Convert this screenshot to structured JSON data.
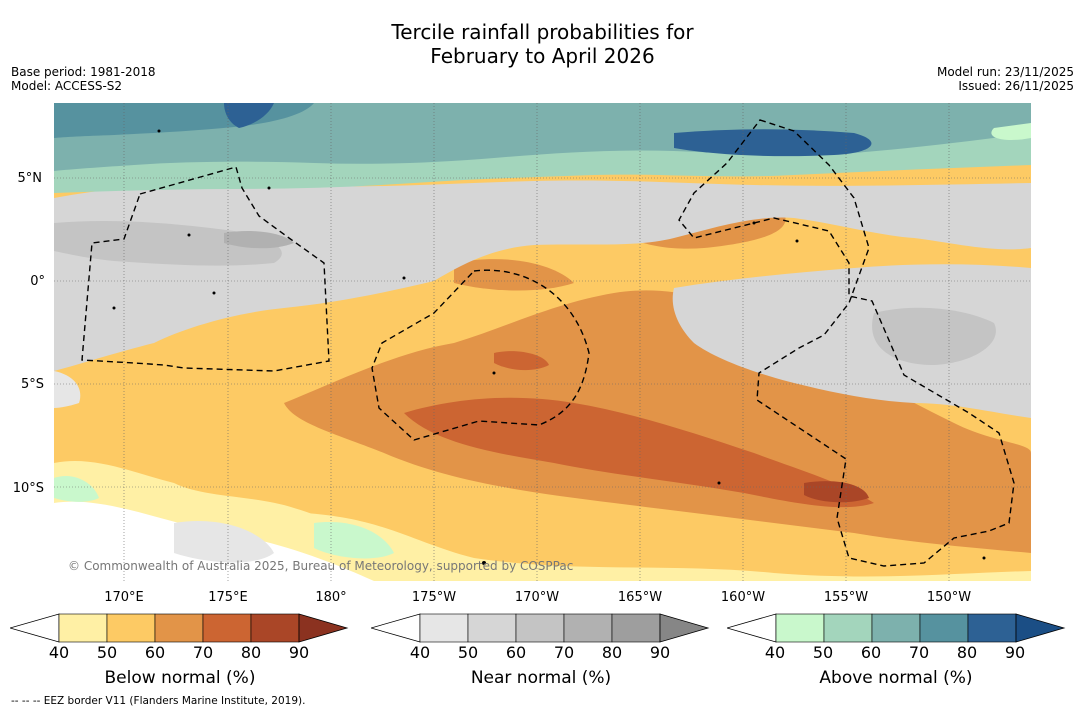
{
  "title": {
    "line1": "Tercile rainfall probabilities for",
    "line2": "February to April 2026"
  },
  "meta_left": {
    "base_period": "Base period: 1981-2018",
    "model": "Model: ACCESS-S2"
  },
  "meta_right": {
    "model_run": "Model run: 23/11/2025",
    "issued": "Issued: 26/11/2025"
  },
  "map": {
    "lat_labels": [
      "5°N",
      "0°",
      "5°S",
      "10°S"
    ],
    "lon_labels": [
      "170°E",
      "175°E",
      "180°",
      "175°W",
      "170°W",
      "165°W",
      "160°W",
      "155°W",
      "150°W"
    ],
    "copyright": "© Commonwealth of Australia 2025, Bureau of Meteorology, supported by COSPPac"
  },
  "colorbars": [
    {
      "title": "Below normal (%)",
      "ticks": [
        "40",
        "50",
        "60",
        "70",
        "80",
        "90"
      ],
      "colors": [
        "#fff0a5",
        "#fdca64",
        "#e29448",
        "#cc6532",
        "#aa4627",
        "#8b3220"
      ]
    },
    {
      "title": "Near normal (%)",
      "ticks": [
        "40",
        "50",
        "60",
        "70",
        "80",
        "90"
      ],
      "colors": [
        "#e6e6e6",
        "#d6d6d6",
        "#c4c4c4",
        "#b1b1b1",
        "#9e9e9e",
        "#868686"
      ]
    },
    {
      "title": "Above normal (%)",
      "ticks": [
        "40",
        "50",
        "60",
        "70",
        "80",
        "90"
      ],
      "colors": [
        "#c9f8cc",
        "#a3d5bc",
        "#7db1ad",
        "#56929f",
        "#2d6194",
        "#1b4e85"
      ]
    }
  ],
  "footnote": "-- -- -- EEZ border V11 (Flanders Marine Institute, 2019)."
}
